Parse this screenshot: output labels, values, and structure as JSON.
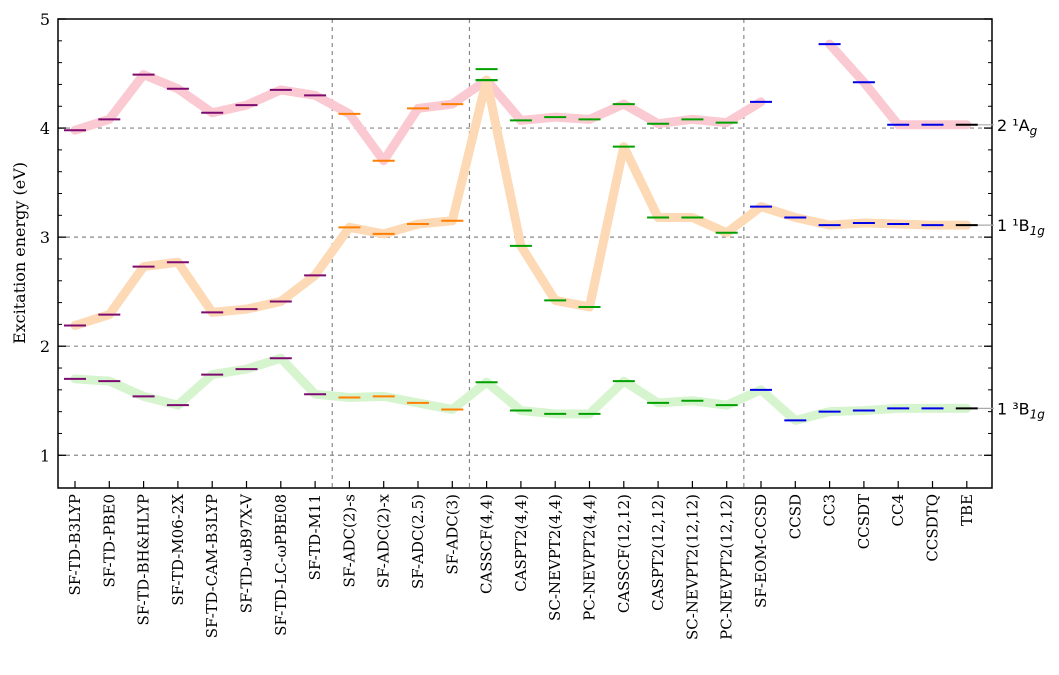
{
  "chart_data": {
    "type": "line",
    "ylabel": "Excitation energy (eV)",
    "ylim": [
      0.7,
      5.0
    ],
    "yticks": [
      1,
      2,
      3,
      4,
      5
    ],
    "categories": [
      "SF-TD-B3LYP",
      "SF-TD-PBE0",
      "SF-TD-BH&HLYP",
      "SF-TD-M06-2X",
      "SF-TD-CAM-B3LYP",
      "SF-TD-ωB97X-V",
      "SF-TD-LC-ωPBE08",
      "SF-TD-M11",
      "SF-ADC(2)-s",
      "SF-ADC(2)-x",
      "SF-ADC(2.5)",
      "SF-ADC(3)",
      "CASSCF(4,4)",
      "CASPT2(4,4)",
      "SC-NEVPT2(4,4)",
      "PC-NEVPT2(4,4)",
      "CASSCF(12,12)",
      "CASPT2(12,12)",
      "SC-NEVPT2(12,12)",
      "PC-NEVPT2(12,12)",
      "SF-EOM-CCSD",
      "CCSD",
      "CC3",
      "CCSDT",
      "CC4",
      "CCSDTQ",
      "TBE"
    ],
    "group_dividers_after_index": [
      7,
      11,
      19
    ],
    "group_colors": [
      "#7d0a6e",
      "#ff7f00",
      "#00a000",
      "#0000e6",
      "#000000"
    ],
    "series": [
      {
        "label": "2 ¹A",
        "sub": "g",
        "line_color": "#fbc9d2",
        "values": [
          3.98,
          4.08,
          4.49,
          4.36,
          4.14,
          4.21,
          4.35,
          4.3,
          4.13,
          3.7,
          4.18,
          4.22,
          4.44,
          4.07,
          4.1,
          4.08,
          4.22,
          4.04,
          4.08,
          4.05,
          4.24,
          null,
          4.77,
          4.42,
          4.03,
          4.03,
          4.03
        ],
        "extra_marks": [
          {
            "index": 12,
            "value": 4.54
          }
        ]
      },
      {
        "label": "1 ¹B",
        "sub": "1g",
        "line_color": "#fdd9b5",
        "values": [
          2.19,
          2.29,
          2.73,
          2.77,
          2.31,
          2.34,
          2.41,
          2.65,
          3.09,
          3.03,
          3.12,
          3.15,
          4.44,
          2.92,
          2.42,
          2.36,
          3.83,
          3.18,
          3.18,
          3.04,
          3.28,
          3.18,
          3.11,
          3.13,
          3.12,
          3.11,
          3.11
        ]
      },
      {
        "label": "1 ³B",
        "sub": "1g",
        "line_color": "#d6f5cf",
        "values": [
          1.7,
          1.68,
          1.54,
          1.46,
          1.74,
          1.79,
          1.89,
          1.56,
          1.53,
          1.54,
          1.48,
          1.42,
          1.67,
          1.41,
          1.38,
          1.38,
          1.68,
          1.48,
          1.5,
          1.46,
          1.6,
          1.32,
          1.4,
          1.41,
          1.43,
          1.43,
          1.43
        ]
      }
    ],
    "grid": true
  }
}
